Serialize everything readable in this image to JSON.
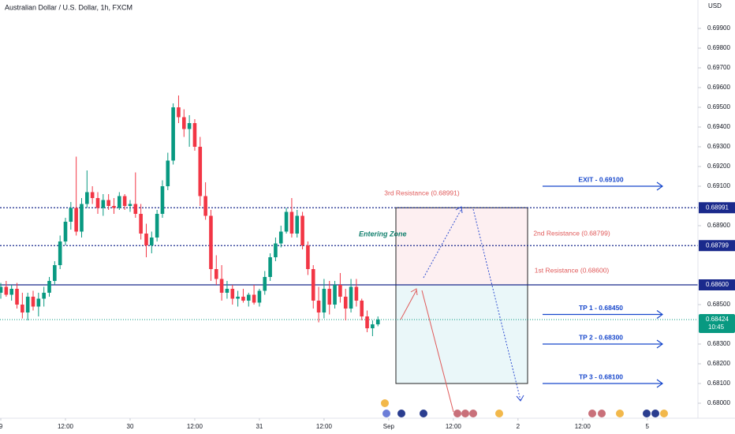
{
  "chart_data": {
    "type": "candlestick",
    "title": "Australian Dollar / U.S. Dollar, 1h, FXCM",
    "y_label": "USD",
    "x": [
      0,
      1,
      2,
      3,
      4,
      5,
      6,
      7,
      8,
      9,
      10,
      11,
      12,
      13,
      14,
      15,
      16,
      17,
      18,
      19,
      20,
      21,
      22,
      23,
      24,
      25,
      26,
      27,
      28,
      29,
      30,
      31,
      32,
      33,
      34,
      35,
      36,
      37,
      38,
      39,
      40,
      41,
      42,
      43,
      44,
      45,
      46,
      47,
      48,
      49,
      50,
      51,
      52,
      53,
      54,
      55,
      56,
      57,
      58,
      59,
      60,
      61,
      62,
      63,
      64,
      65,
      66,
      67,
      68,
      69,
      70
    ],
    "open": [
      0.6856,
      0.6859,
      0.6855,
      0.6858,
      0.685,
      0.6846,
      0.6854,
      0.6849,
      0.6853,
      0.6856,
      0.6862,
      0.687,
      0.6882,
      0.6892,
      0.6899,
      0.6887,
      0.6901,
      0.6907,
      0.6904,
      0.6899,
      0.6903,
      0.69,
      0.6899,
      0.6905,
      0.69,
      0.6901,
      0.6896,
      0.6886,
      0.688,
      0.6884,
      0.6896,
      0.691,
      0.6923,
      0.695,
      0.6945,
      0.6939,
      0.6942,
      0.693,
      0.6905,
      0.6895,
      0.6868,
      0.6863,
      0.6856,
      0.6858,
      0.6853,
      0.6854,
      0.6852,
      0.6855,
      0.6851,
      0.6857,
      0.6864,
      0.6874,
      0.6881,
      0.6887,
      0.6897,
      0.6886,
      0.6895,
      0.688,
      0.6868,
      0.6852,
      0.6846,
      0.6858,
      0.685,
      0.686,
      0.6854,
      0.6848,
      0.6859,
      0.6852,
      0.6844,
      0.6838,
      0.684
    ],
    "high": [
      0.6861,
      0.6862,
      0.686,
      0.6861,
      0.6856,
      0.6856,
      0.6857,
      0.6856,
      0.6859,
      0.6864,
      0.6872,
      0.6885,
      0.6894,
      0.6902,
      0.6925,
      0.6904,
      0.6918,
      0.691,
      0.6907,
      0.6906,
      0.6906,
      0.6904,
      0.6907,
      0.6906,
      0.6903,
      0.6917,
      0.6901,
      0.6891,
      0.6887,
      0.6898,
      0.6913,
      0.6927,
      0.6952,
      0.6956,
      0.6949,
      0.6946,
      0.6944,
      0.6935,
      0.6912,
      0.6898,
      0.6875,
      0.687,
      0.6862,
      0.686,
      0.6857,
      0.6858,
      0.6856,
      0.686,
      0.6858,
      0.6867,
      0.6876,
      0.6884,
      0.689,
      0.6899,
      0.6904,
      0.6898,
      0.6897,
      0.6882,
      0.687,
      0.6859,
      0.6863,
      0.6862,
      0.6862,
      0.6866,
      0.6858,
      0.6863,
      0.6863,
      0.6853,
      0.6847,
      0.6842,
      0.6844
    ],
    "low": [
      0.6853,
      0.6854,
      0.6852,
      0.6848,
      0.6843,
      0.6842,
      0.6847,
      0.6844,
      0.6849,
      0.6854,
      0.686,
      0.6868,
      0.688,
      0.6888,
      0.6885,
      0.6884,
      0.6899,
      0.6901,
      0.6896,
      0.6895,
      0.6898,
      0.6896,
      0.6898,
      0.6898,
      0.6897,
      0.6894,
      0.6883,
      0.6874,
      0.6876,
      0.6882,
      0.6894,
      0.6908,
      0.6921,
      0.6942,
      0.6935,
      0.693,
      0.6928,
      0.69,
      0.6893,
      0.6862,
      0.686,
      0.6852,
      0.6853,
      0.685,
      0.6849,
      0.6851,
      0.6849,
      0.685,
      0.6849,
      0.6855,
      0.6862,
      0.6872,
      0.6879,
      0.6886,
      0.6884,
      0.6884,
      0.6878,
      0.6865,
      0.6848,
      0.6841,
      0.6843,
      0.6845,
      0.6848,
      0.6851,
      0.6842,
      0.6846,
      0.6849,
      0.6842,
      0.6836,
      0.6834,
      0.6839
    ],
    "close": [
      0.6859,
      0.6855,
      0.6858,
      0.685,
      0.6846,
      0.6854,
      0.6849,
      0.6853,
      0.6856,
      0.6862,
      0.687,
      0.6882,
      0.6892,
      0.6899,
      0.6887,
      0.6901,
      0.6907,
      0.6904,
      0.6899,
      0.6903,
      0.69,
      0.6899,
      0.6905,
      0.69,
      0.6901,
      0.6896,
      0.6886,
      0.688,
      0.6884,
      0.6896,
      0.691,
      0.6923,
      0.695,
      0.6945,
      0.6939,
      0.6942,
      0.693,
      0.6905,
      0.6895,
      0.6868,
      0.6863,
      0.6856,
      0.6858,
      0.6853,
      0.6854,
      0.6852,
      0.6855,
      0.6851,
      0.6857,
      0.6864,
      0.6874,
      0.6881,
      0.6887,
      0.6897,
      0.6886,
      0.6895,
      0.688,
      0.6868,
      0.6852,
      0.6846,
      0.6858,
      0.685,
      0.686,
      0.6854,
      0.6848,
      0.6859,
      0.6852,
      0.6844,
      0.6838,
      0.684,
      0.68424
    ],
    "up_color": "#089981",
    "down_color": "#f23645",
    "grid": false,
    "xlim": [
      -0.15,
      129.4
    ],
    "ylim": [
      0.67924,
      0.70044
    ],
    "xticks": [
      {
        "value": 0,
        "label": "9"
      },
      {
        "value": 12,
        "label": "12:00"
      },
      {
        "value": 24,
        "label": "30"
      },
      {
        "value": 36,
        "label": "12:00"
      },
      {
        "value": 48,
        "label": "31"
      },
      {
        "value": 60,
        "label": "12:00"
      },
      {
        "value": 72,
        "label": "Sep"
      },
      {
        "value": 84,
        "label": "12:00"
      },
      {
        "value": 96,
        "label": "2"
      },
      {
        "value": 108,
        "label": "12:00"
      },
      {
        "value": 120,
        "label": "5"
      }
    ],
    "yticks": [
      {
        "value": 0.699,
        "label": "0.69900"
      },
      {
        "value": 0.698,
        "label": "0.69800"
      },
      {
        "value": 0.697,
        "label": "0.69700"
      },
      {
        "value": 0.696,
        "label": "0.69600"
      },
      {
        "value": 0.695,
        "label": "0.69500"
      },
      {
        "value": 0.694,
        "label": "0.69400"
      },
      {
        "value": 0.693,
        "label": "0.69300"
      },
      {
        "value": 0.692,
        "label": "0.69200"
      },
      {
        "value": 0.691,
        "label": "0.69100"
      },
      {
        "value": 0.689,
        "label": "0.68900"
      },
      {
        "value": 0.685,
        "label": "0.68500"
      },
      {
        "value": 0.683,
        "label": "0.68300"
      },
      {
        "value": 0.682,
        "label": "0.68200"
      },
      {
        "value": 0.681,
        "label": "0.68100"
      },
      {
        "value": 0.68,
        "label": "0.68000"
      }
    ],
    "levels": [
      {
        "value": 0.68991,
        "label": "0.68991",
        "style": "dotted",
        "note": "3rd Resistance (0.68991)"
      },
      {
        "value": 0.68799,
        "label": "0.68799",
        "style": "dotted",
        "note": "2nd Resistance (0.68799)"
      },
      {
        "value": 0.686,
        "label": "0.68600",
        "style": "solid",
        "note": "1st Resistance (0.68600)"
      }
    ],
    "level_color": "#1a2a8c",
    "note_color": "#e05a5a",
    "last_price": {
      "value": 0.68424,
      "label": "0.68424",
      "countdown": "10:45"
    },
    "zones": [
      {
        "from": 0.686,
        "to": 0.68991,
        "color": "#fdeff1"
      },
      {
        "from": 0.681,
        "to": 0.686,
        "color": "#eaf7f9"
      }
    ],
    "zone_label": "Entering Zone",
    "targets": [
      {
        "text": "EXIT - 0.69100",
        "value": 0.691
      },
      {
        "text": "TP 1 - 0.68450",
        "value": 0.6845
      },
      {
        "text": "TP 2 - 0.68300",
        "value": 0.683
      },
      {
        "text": "TP 3 - 0.68100",
        "value": 0.681
      }
    ],
    "target_color": "#1848cc"
  }
}
